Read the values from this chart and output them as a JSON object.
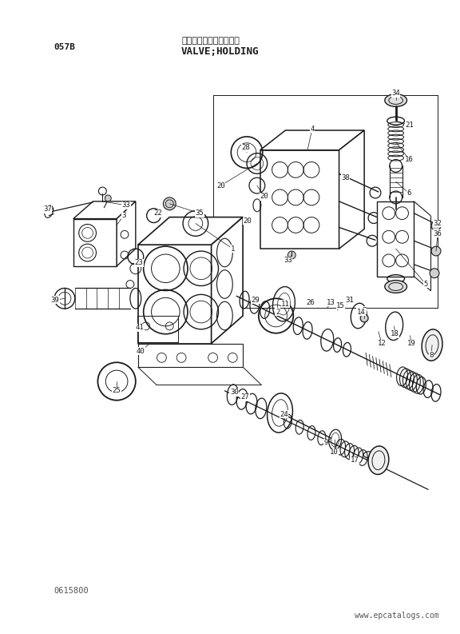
{
  "title_jp": "バルブ：ホールディング",
  "title_en": "VALVE;HOLDING",
  "part_number": "057B",
  "catalog_number": "0615800",
  "website": "www.epcatalogs.com",
  "bg_color": "#ffffff",
  "line_color": "#1a1a1a",
  "text_color": "#1a1a1a",
  "fig_width": 5.76,
  "fig_height": 7.93,
  "dpi": 100
}
